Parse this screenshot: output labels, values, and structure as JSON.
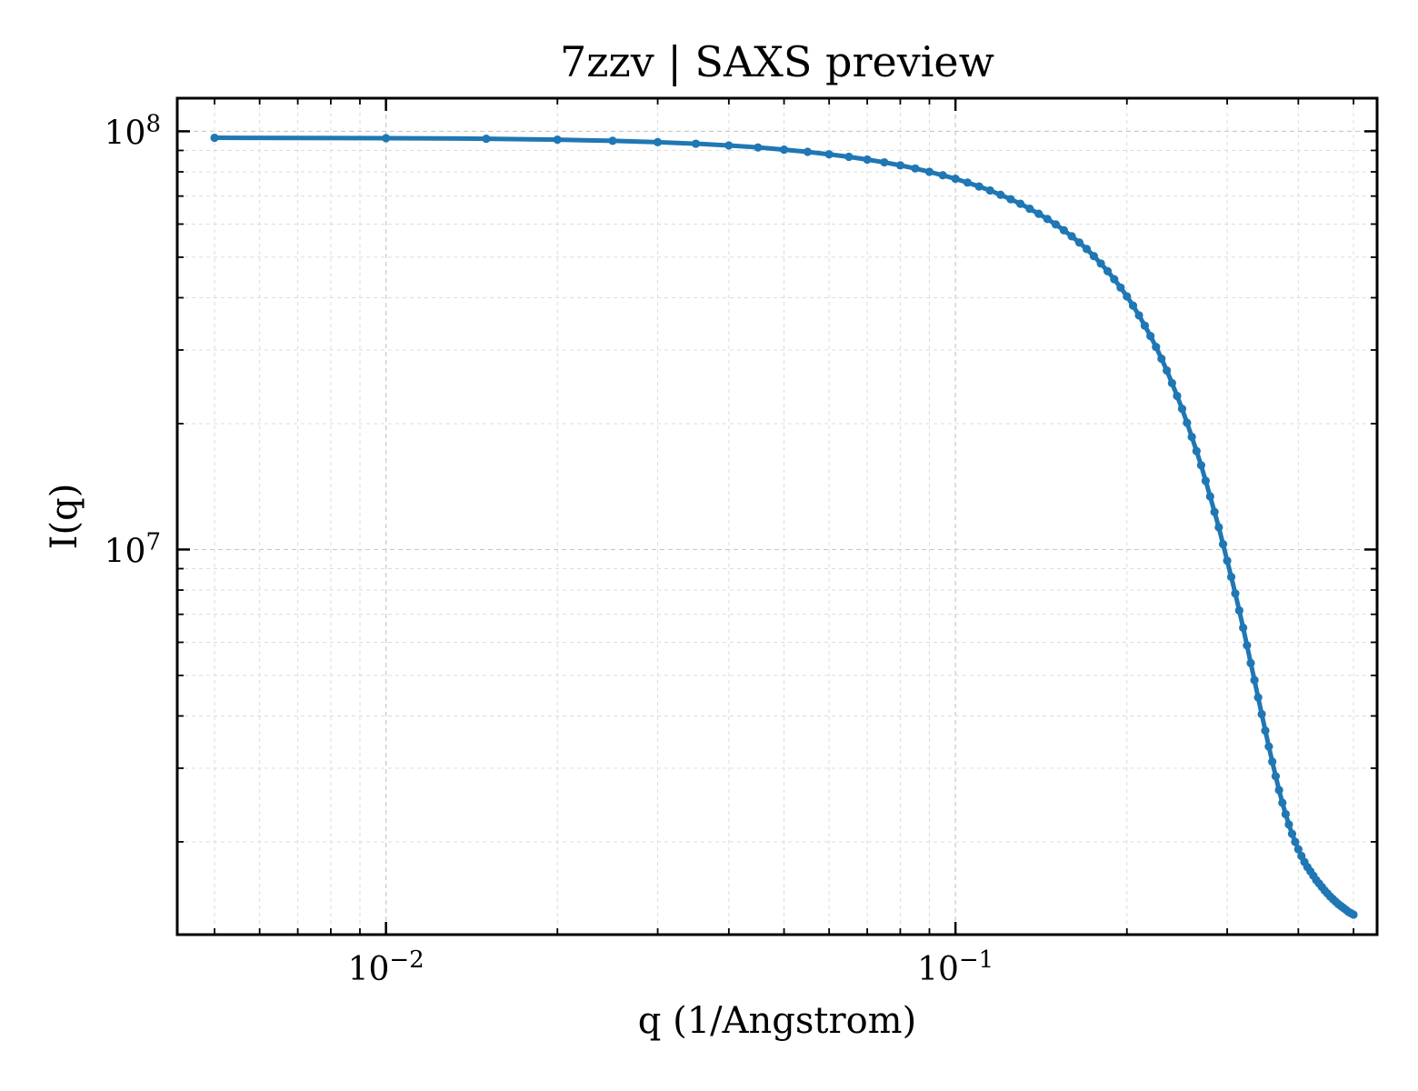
{
  "chart_data": {
    "type": "line",
    "title": "7zzv | SAXS preview",
    "xlabel": "q (1/Angstrom)",
    "ylabel": "I(q)",
    "xscale": "log",
    "yscale": "log",
    "xlim": [
      0.0043,
      0.55
    ],
    "ylim": [
      1200000,
      120000000
    ],
    "grid": true,
    "legend": "none",
    "x_ticks": [
      {
        "value": 0.01,
        "base": "10",
        "exp": "−2"
      },
      {
        "value": 0.1,
        "base": "10",
        "exp": "−1"
      }
    ],
    "y_ticks": [
      {
        "value": 10000000,
        "base": "10",
        "exp": "7"
      },
      {
        "value": 100000000,
        "base": "10",
        "exp": "8"
      }
    ],
    "series": [
      {
        "color": "#1f77b4",
        "x": [
          0.005,
          0.01,
          0.015,
          0.02,
          0.025,
          0.03,
          0.035,
          0.04,
          0.045,
          0.05,
          0.055,
          0.06,
          0.065,
          0.07,
          0.075,
          0.08,
          0.085,
          0.09,
          0.095,
          0.1,
          0.105,
          0.11,
          0.115,
          0.12,
          0.125,
          0.13,
          0.135,
          0.14,
          0.145,
          0.15,
          0.155,
          0.16,
          0.165,
          0.17,
          0.175,
          0.18,
          0.185,
          0.19,
          0.195,
          0.2,
          0.205,
          0.21,
          0.215,
          0.22,
          0.225,
          0.23,
          0.235,
          0.24,
          0.245,
          0.25,
          0.255,
          0.26,
          0.265,
          0.27,
          0.275,
          0.28,
          0.285,
          0.29,
          0.295,
          0.3,
          0.305,
          0.31,
          0.315,
          0.32,
          0.325,
          0.33,
          0.335,
          0.34,
          0.345,
          0.35,
          0.355,
          0.36,
          0.365,
          0.37,
          0.375,
          0.38,
          0.385,
          0.39,
          0.395,
          0.4,
          0.405,
          0.41,
          0.415,
          0.42,
          0.425,
          0.43,
          0.435,
          0.44,
          0.445,
          0.45,
          0.455,
          0.46,
          0.465,
          0.47,
          0.475,
          0.48,
          0.485,
          0.49,
          0.495,
          0.5
        ],
        "y": [
          96500000,
          96300000,
          96000000,
          95500000,
          94900000,
          94200000,
          93400000,
          92500000,
          91500000,
          90400000,
          89300000,
          88100000,
          86900000,
          85600000,
          84300000,
          82900000,
          81500000,
          80000000,
          78500000,
          77000000,
          75400000,
          73800000,
          72200000,
          70500000,
          68800000,
          67100000,
          65300000,
          63500000,
          61700000,
          59900000,
          58000000,
          56100000,
          54200000,
          52300000,
          50300000,
          48300000,
          46300000,
          44300000,
          42300000,
          40300000,
          38300000,
          36300000,
          34300000,
          32400000,
          30500000,
          28600000,
          26800000,
          25000000,
          23300000,
          21700000,
          20100000,
          18600000,
          17200000,
          15900000,
          14600000,
          13400000,
          12300000,
          11300000,
          10300000,
          9400000,
          8600000,
          7850000,
          7150000,
          6500000,
          5900000,
          5350000,
          4870000,
          4430000,
          4040000,
          3690000,
          3380000,
          3110000,
          2870000,
          2660000,
          2480000,
          2330000,
          2200000,
          2090000,
          2000000,
          1920000,
          1850000,
          1790000,
          1740000,
          1700000,
          1660000,
          1620000,
          1590000,
          1560000,
          1530000,
          1505000,
          1480000,
          1460000,
          1440000,
          1420000,
          1405000,
          1390000,
          1375000,
          1360000,
          1350000,
          1340000
        ]
      }
    ]
  }
}
